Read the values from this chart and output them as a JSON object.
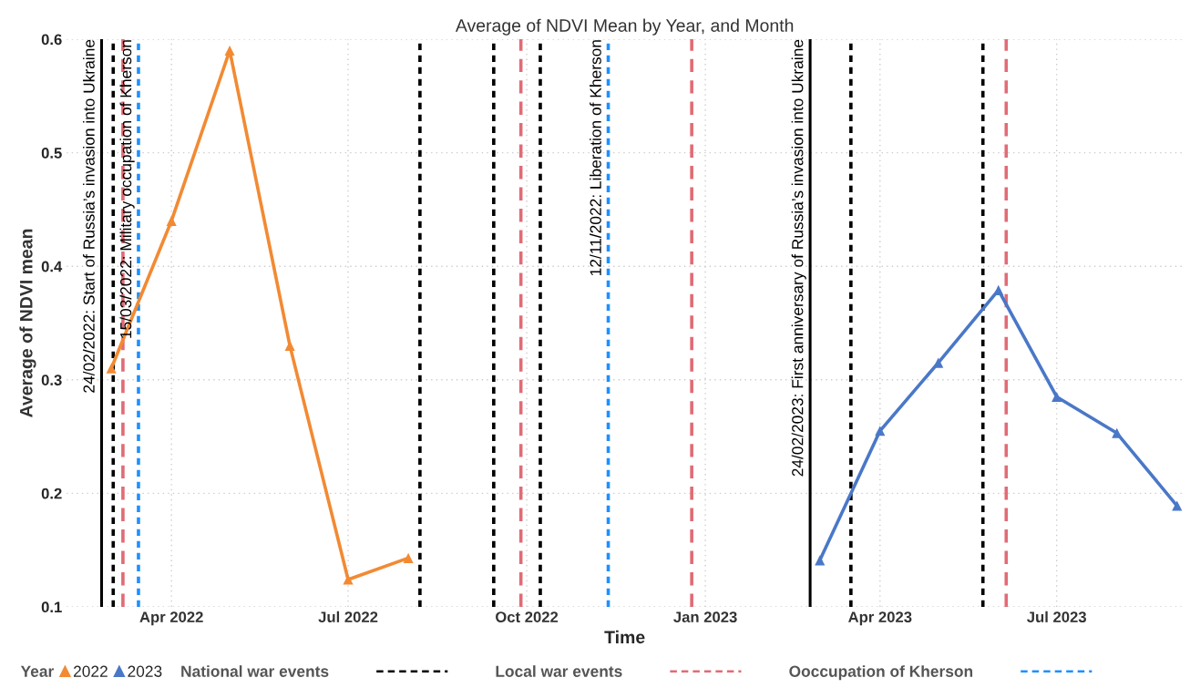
{
  "chart_data": {
    "type": "line",
    "title": "Average of NDVI Mean by Year, and Month",
    "xlabel": "Time",
    "ylabel": "Average of NDVI mean",
    "legend_title": "Year",
    "xlim": [
      "2022-02-06",
      "2023-09-04"
    ],
    "ylim": [
      0.1,
      0.6
    ],
    "xticks": [
      {
        "value": "2022-04-01",
        "label": "Apr 2022"
      },
      {
        "value": "2022-07-01",
        "label": "Jul 2022"
      },
      {
        "value": "2022-10-01",
        "label": "Oct 2022"
      },
      {
        "value": "2023-01-01",
        "label": "Jan 2023"
      },
      {
        "value": "2023-04-01",
        "label": "Apr 2023"
      },
      {
        "value": "2023-07-01",
        "label": "Jul 2023"
      }
    ],
    "yticks": [
      0.1,
      0.2,
      0.3,
      0.4,
      0.5,
      0.6
    ],
    "grid": true,
    "marker": "triangle",
    "legend": "bottom",
    "series": [
      {
        "name": "2022",
        "color": "#f28a33",
        "x": [
          "2022-03-01",
          "2022-04-01",
          "2022-05-01",
          "2022-06-01",
          "2022-07-01",
          "2022-08-01"
        ],
        "values": [
          0.31,
          0.44,
          0.59,
          0.33,
          0.124,
          0.143
        ]
      },
      {
        "name": "2023",
        "color": "#4a78c8",
        "x": [
          "2023-03-01",
          "2023-04-01",
          "2023-05-01",
          "2023-06-01",
          "2023-07-01",
          "2023-08-01",
          "2023-09-01"
        ],
        "values": [
          0.141,
          0.255,
          0.315,
          0.379,
          0.285,
          0.253,
          0.189
        ]
      }
    ],
    "ref_lines": [
      {
        "axis": "x",
        "value": "2022-02-24",
        "label": "24/02/2022: Start of Russia’s invasion into Ukraine",
        "color": "#000000",
        "line_style": "solid"
      },
      {
        "axis": "x",
        "value": "2022-03-02",
        "color": "#000000",
        "line_style": "dotted"
      },
      {
        "axis": "x",
        "value": "2022-03-07",
        "color": "#e06c75",
        "line_style": "dashed"
      },
      {
        "axis": "x",
        "value": "2022-03-15",
        "label": "15/03/2022: Military occupation of Kherson",
        "color": "#1e90ff",
        "line_style": "dotted"
      },
      {
        "axis": "x",
        "value": "2022-08-07",
        "color": "#000000",
        "line_style": "dotted"
      },
      {
        "axis": "x",
        "value": "2022-09-14",
        "color": "#000000",
        "line_style": "dotted"
      },
      {
        "axis": "x",
        "value": "2022-09-28",
        "color": "#e06c75",
        "line_style": "dashed"
      },
      {
        "axis": "x",
        "value": "2022-10-08",
        "color": "#000000",
        "line_style": "dotted"
      },
      {
        "axis": "x",
        "value": "2022-11-12",
        "label": "12/11/2022: Liberation of Kherson",
        "color": "#1e90ff",
        "line_style": "dotted"
      },
      {
        "axis": "x",
        "value": "2022-12-25",
        "color": "#e06c75",
        "line_style": "dashed"
      },
      {
        "axis": "x",
        "value": "2023-02-24",
        "label": "24/02/2023: First anniversary of Russia’s invasion into Ukraine",
        "color": "#000000",
        "line_style": "solid"
      },
      {
        "axis": "x",
        "value": "2023-03-17",
        "color": "#000000",
        "line_style": "dotted"
      },
      {
        "axis": "x",
        "value": "2023-05-24",
        "color": "#000000",
        "line_style": "dotted"
      },
      {
        "axis": "x",
        "value": "2023-06-05",
        "color": "#e06c75",
        "line_style": "dashed"
      }
    ],
    "annotations": [
      "National war events",
      "Local war events",
      "Ooccupation of Kherson"
    ]
  }
}
